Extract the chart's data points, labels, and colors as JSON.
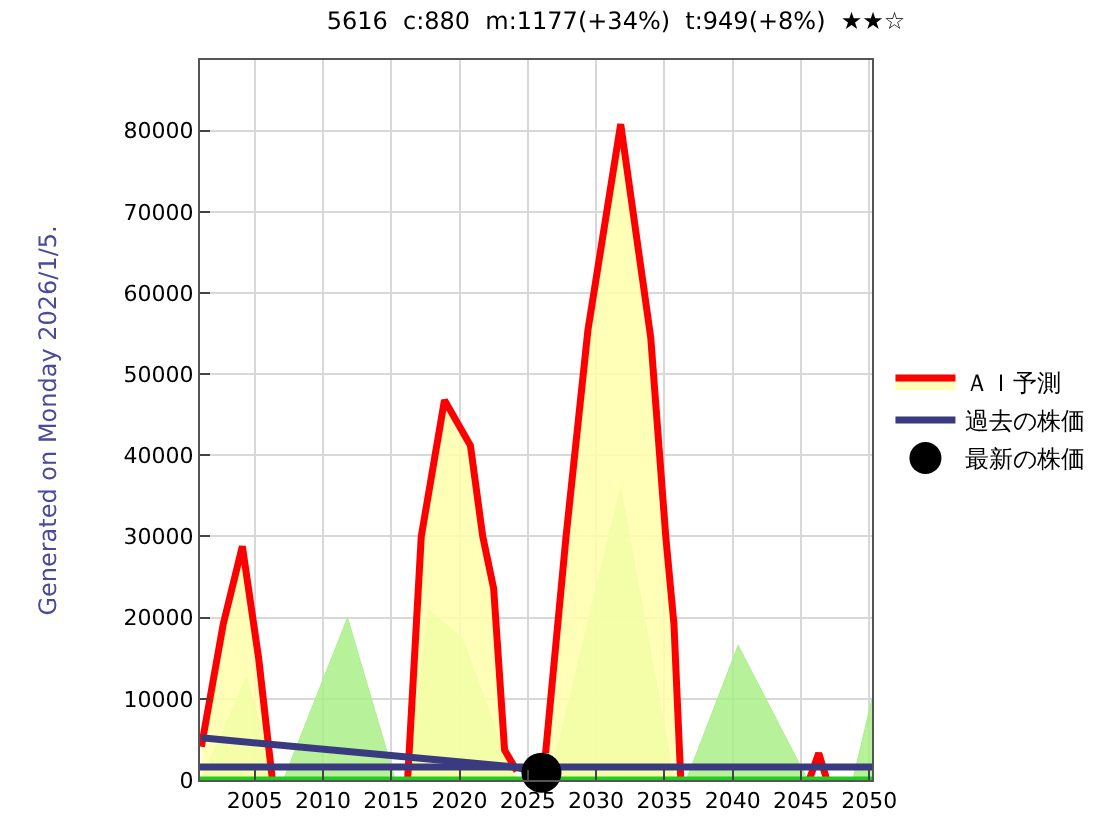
{
  "chart_data": {
    "type": "line",
    "title": "5616  c:880  m:1177(+34%)  t:949(+8%)  ★★☆",
    "annotations": [
      "Generated on Monday 2026/1/5."
    ],
    "xlim": [
      2001,
      2050.2
    ],
    "xticks": [
      2005,
      2010,
      2015,
      2020,
      2025,
      2030,
      2035,
      2040,
      2045,
      2050
    ],
    "ylim": [
      0,
      88700
    ],
    "yticks": [
      0,
      10000,
      20000,
      30000,
      40000,
      50000,
      60000,
      70000,
      80000
    ],
    "grid": true,
    "legend": "right",
    "series": [
      {
        "type": "area",
        "color": "#aaf08a",
        "x": [
          2001.1,
          2004.4,
          2006.5,
          null,
          2007.1,
          2011.8,
          2015.3,
          null,
          2016.3,
          2017.7,
          2020.2,
          2024.0,
          null,
          2026.6,
          2031.8,
          2035.7,
          null,
          2036.6,
          2040.4,
          2045.5,
          null,
          2048.8,
          2050.2
        ],
        "values": [
          0,
          12700,
          0,
          null,
          0,
          20000,
          0,
          null,
          0,
          21000,
          17500,
          0,
          null,
          0,
          36000,
          0,
          null,
          0,
          16600,
          0,
          null,
          0,
          10000
        ]
      },
      {
        "type": "area",
        "name": "ＡＩ予測",
        "color": "#ff0000",
        "colors": [
          "#ffffaa",
          "#ffffaa",
          "#ffffaa",
          "#ffffaa",
          "#ffffaa"
        ],
        "x": [
          2001.1,
          2002.7,
          2004.1,
          2005.3,
          2006.3
        ],
        "values": [
          4100,
          19200,
          28800,
          14900,
          0
        ]
      },
      {
        "type": "area",
        "color": "#ff0000",
        "colors": [
          "#ffffaa",
          "#ffffaa",
          "#ffffaa",
          "#ffffaa",
          "#ffffaa",
          "#ffffaa",
          "#ffffaa",
          "#ffffaa"
        ],
        "x": [
          2016.2,
          2017.2,
          2018.9,
          2020.8,
          2021.7,
          2022.5,
          2023.3,
          2024.2
        ],
        "values": [
          0,
          30000,
          46800,
          41200,
          30000,
          23600,
          3700,
          1100
        ]
      },
      {
        "type": "area",
        "color": "#ff0000",
        "colors": [
          "#ffffaa",
          "#ffffaa",
          "#ffffaa",
          "#ffffaa",
          "#ffffaa",
          "#ffffaa",
          "#ffffaa",
          "#ffffaa"
        ],
        "x": [
          2026.3,
          2027.8,
          2029.4,
          2031.8,
          2034.0,
          2035.1,
          2035.7,
          2036.2
        ],
        "values": [
          3300,
          30000,
          55400,
          80800,
          54500,
          30000,
          19200,
          0
        ]
      },
      {
        "color": "#ff0000",
        "x": [
          2045.6,
          2046.3,
          2046.9
        ],
        "values": [
          0,
          3300,
          0
        ]
      },
      {
        "type": "line",
        "color": "#22cc22",
        "x": [
          2001,
          2050.2
        ],
        "values": [
          0,
          0
        ]
      },
      {
        "type": "line",
        "color": "#3a3a80",
        "x": [
          2001,
          2050.2
        ],
        "values": [
          1600,
          1600
        ]
      },
      {
        "type": "line",
        "name": "過去の株価",
        "color": "#3a3a80",
        "x": [
          2001.1,
          2024.0,
          2025.9
        ],
        "values": [
          5200,
          1600,
          900
        ]
      },
      {
        "type": "scatter",
        "name": "最新の株価",
        "color": "#000000",
        "x": [
          2026.0
        ],
        "values": [
          900
        ]
      }
    ]
  }
}
